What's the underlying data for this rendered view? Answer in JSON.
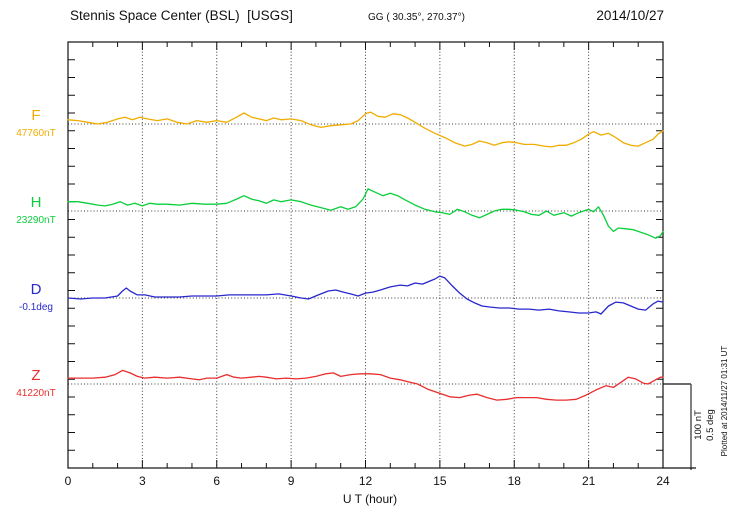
{
  "header": {
    "title": "Stennis Space Center (BSL)  [USGS]",
    "coordinates": "GG ( 30.35°, 270.37°)",
    "date": "2014/10/27"
  },
  "x_axis": {
    "label": "U T (hour)",
    "tick_labels": [
      0,
      3,
      6,
      9,
      12,
      15,
      18,
      21,
      24
    ],
    "range": [
      0,
      24
    ],
    "minor_tick_every_hours": 1,
    "major_tick_every_hours": 3,
    "grid": "dotted vertical lines at each 3-hour major tick"
  },
  "scale_bar": {
    "label_nT": "100 nT",
    "label_deg": "0.5 deg",
    "note": "vertical bar at right edge spanning 100 nT / 0.5 deg"
  },
  "plotted_at": "Plotted at 2014/11/27 01:31 UT",
  "chart_data": {
    "type": "line",
    "title": "Magnetogram, Stennis Space Center (BSL), USGS, 2014/10/27",
    "xlabel": "U T (hour)",
    "xlim": [
      0,
      24
    ],
    "grid": "dotted",
    "x_units": "hours UT",
    "series": [
      {
        "name": "F",
        "reference_label": "47760nT",
        "units": "nT",
        "color": "#F0AD00",
        "baseline_note": "dotted line = 47760 nT; offsets in nT relative to baseline",
        "points": [
          [
            0,
            5
          ],
          [
            0.4,
            4
          ],
          [
            0.8,
            2
          ],
          [
            1.2,
            0
          ],
          [
            1.6,
            2
          ],
          [
            2,
            6
          ],
          [
            2.3,
            8
          ],
          [
            2.6,
            5
          ],
          [
            2.9,
            8
          ],
          [
            3.2,
            6
          ],
          [
            3.6,
            4
          ],
          [
            4,
            6
          ],
          [
            4.4,
            2
          ],
          [
            4.8,
            0
          ],
          [
            5.2,
            4
          ],
          [
            5.6,
            2
          ],
          [
            6,
            4
          ],
          [
            6.4,
            2
          ],
          [
            6.8,
            8
          ],
          [
            7.1,
            13
          ],
          [
            7.4,
            8
          ],
          [
            7.7,
            6
          ],
          [
            8,
            4
          ],
          [
            8.3,
            7
          ],
          [
            8.6,
            5
          ],
          [
            9,
            6
          ],
          [
            9.4,
            4
          ],
          [
            9.8,
            -1
          ],
          [
            10.2,
            -4
          ],
          [
            10.6,
            -2
          ],
          [
            11,
            -1
          ],
          [
            11.4,
            0
          ],
          [
            11.7,
            4
          ],
          [
            12,
            12
          ],
          [
            12.2,
            14
          ],
          [
            12.5,
            9
          ],
          [
            12.8,
            8
          ],
          [
            13.1,
            12
          ],
          [
            13.4,
            11
          ],
          [
            13.7,
            7
          ],
          [
            14,
            2
          ],
          [
            14.4,
            -5
          ],
          [
            14.8,
            -11
          ],
          [
            15.2,
            -16
          ],
          [
            15.6,
            -22
          ],
          [
            16,
            -26
          ],
          [
            16.3,
            -24
          ],
          [
            16.6,
            -20
          ],
          [
            16.9,
            -22
          ],
          [
            17.2,
            -25
          ],
          [
            17.5,
            -22
          ],
          [
            17.8,
            -21
          ],
          [
            18.1,
            -22
          ],
          [
            18.4,
            -24
          ],
          [
            18.8,
            -24
          ],
          [
            19.2,
            -26
          ],
          [
            19.5,
            -27
          ],
          [
            19.8,
            -25
          ],
          [
            20.1,
            -25
          ],
          [
            20.4,
            -22
          ],
          [
            20.7,
            -18
          ],
          [
            21,
            -12
          ],
          [
            21.2,
            -9
          ],
          [
            21.5,
            -13
          ],
          [
            21.8,
            -11
          ],
          [
            22.1,
            -16
          ],
          [
            22.4,
            -22
          ],
          [
            22.7,
            -25
          ],
          [
            23,
            -26
          ],
          [
            23.3,
            -22
          ],
          [
            23.6,
            -18
          ],
          [
            23.8,
            -12
          ],
          [
            24,
            -8
          ]
        ]
      },
      {
        "name": "H",
        "reference_label": "23290nT",
        "units": "nT",
        "color": "#0BCE3C",
        "baseline_note": "dotted line = 23290 nT; offsets in nT relative to baseline",
        "points": [
          [
            0,
            11
          ],
          [
            0.4,
            11
          ],
          [
            0.8,
            9
          ],
          [
            1.2,
            7
          ],
          [
            1.5,
            6
          ],
          [
            1.8,
            8
          ],
          [
            2.1,
            11
          ],
          [
            2.4,
            7
          ],
          [
            2.7,
            9
          ],
          [
            3,
            6
          ],
          [
            3.3,
            9
          ],
          [
            3.6,
            8
          ],
          [
            4,
            8
          ],
          [
            4.5,
            7
          ],
          [
            5,
            9
          ],
          [
            5.5,
            8
          ],
          [
            6,
            8
          ],
          [
            6.4,
            9
          ],
          [
            6.8,
            14
          ],
          [
            7.1,
            18
          ],
          [
            7.4,
            14
          ],
          [
            7.7,
            12
          ],
          [
            8,
            9
          ],
          [
            8.3,
            13
          ],
          [
            8.6,
            11
          ],
          [
            9,
            13
          ],
          [
            9.4,
            11
          ],
          [
            9.8,
            7
          ],
          [
            10.2,
            4
          ],
          [
            10.6,
            1
          ],
          [
            11,
            5
          ],
          [
            11.3,
            2
          ],
          [
            11.6,
            5
          ],
          [
            11.9,
            14
          ],
          [
            12.1,
            26
          ],
          [
            12.4,
            22
          ],
          [
            12.7,
            18
          ],
          [
            13,
            21
          ],
          [
            13.3,
            18
          ],
          [
            13.6,
            13
          ],
          [
            14,
            7
          ],
          [
            14.4,
            2
          ],
          [
            14.8,
            -1
          ],
          [
            15.1,
            -2
          ],
          [
            15.4,
            -4
          ],
          [
            15.7,
            2
          ],
          [
            16,
            -1
          ],
          [
            16.3,
            -5
          ],
          [
            16.6,
            -8
          ],
          [
            16.9,
            -4
          ],
          [
            17.2,
            0
          ],
          [
            17.5,
            2
          ],
          [
            17.8,
            2
          ],
          [
            18.1,
            1
          ],
          [
            18.4,
            -1
          ],
          [
            18.7,
            -4
          ],
          [
            19,
            -5
          ],
          [
            19.3,
            0
          ],
          [
            19.6,
            -5
          ],
          [
            20,
            -2
          ],
          [
            20.3,
            -6
          ],
          [
            20.6,
            -2
          ],
          [
            21,
            2
          ],
          [
            21.2,
            -1
          ],
          [
            21.4,
            5
          ],
          [
            21.6,
            -5
          ],
          [
            21.8,
            -18
          ],
          [
            22,
            -24
          ],
          [
            22.2,
            -20
          ],
          [
            22.5,
            -21
          ],
          [
            22.8,
            -22
          ],
          [
            23.1,
            -25
          ],
          [
            23.4,
            -28
          ],
          [
            23.7,
            -32
          ],
          [
            23.9,
            -29
          ],
          [
            24,
            -24
          ]
        ]
      },
      {
        "name": "D",
        "reference_label": "-0.1deg",
        "units": "deg",
        "color": "#2828CC",
        "baseline_note": "dotted line = -0.1 deg; offsets in degrees relative to baseline",
        "points": [
          [
            0,
            0
          ],
          [
            0.5,
            -0.006
          ],
          [
            1,
            0
          ],
          [
            1.5,
            0
          ],
          [
            2,
            0.012
          ],
          [
            2.2,
            0.041
          ],
          [
            2.35,
            0.059
          ],
          [
            2.5,
            0.041
          ],
          [
            2.8,
            0.018
          ],
          [
            3.1,
            0.018
          ],
          [
            3.5,
            0.006
          ],
          [
            4,
            0.006
          ],
          [
            4.5,
            0.006
          ],
          [
            5,
            0.012
          ],
          [
            5.5,
            0.012
          ],
          [
            6,
            0.012
          ],
          [
            6.5,
            0.018
          ],
          [
            7,
            0.018
          ],
          [
            7.5,
            0.018
          ],
          [
            8,
            0.018
          ],
          [
            8.5,
            0.024
          ],
          [
            9,
            0.012
          ],
          [
            9.4,
            0
          ],
          [
            9.7,
            -0.006
          ],
          [
            10.1,
            0.018
          ],
          [
            10.5,
            0.041
          ],
          [
            10.8,
            0.047
          ],
          [
            11.1,
            0.035
          ],
          [
            11.4,
            0.024
          ],
          [
            11.7,
            0.012
          ],
          [
            12,
            0.029
          ],
          [
            12.3,
            0.035
          ],
          [
            12.6,
            0.047
          ],
          [
            13,
            0.065
          ],
          [
            13.4,
            0.076
          ],
          [
            13.7,
            0.071
          ],
          [
            14,
            0.088
          ],
          [
            14.3,
            0.082
          ],
          [
            14.6,
            0.1
          ],
          [
            14.8,
            0.112
          ],
          [
            15,
            0.129
          ],
          [
            15.2,
            0.118
          ],
          [
            15.5,
            0.071
          ],
          [
            15.8,
            0.029
          ],
          [
            16.1,
            -0.006
          ],
          [
            16.4,
            -0.029
          ],
          [
            16.7,
            -0.047
          ],
          [
            17,
            -0.053
          ],
          [
            17.4,
            -0.059
          ],
          [
            17.8,
            -0.059
          ],
          [
            18.2,
            -0.065
          ],
          [
            18.6,
            -0.065
          ],
          [
            19,
            -0.071
          ],
          [
            19.4,
            -0.065
          ],
          [
            19.8,
            -0.076
          ],
          [
            20.2,
            -0.082
          ],
          [
            20.6,
            -0.088
          ],
          [
            21,
            -0.088
          ],
          [
            21.3,
            -0.082
          ],
          [
            21.5,
            -0.094
          ],
          [
            21.8,
            -0.047
          ],
          [
            22.1,
            -0.024
          ],
          [
            22.4,
            -0.029
          ],
          [
            22.7,
            -0.047
          ],
          [
            23,
            -0.065
          ],
          [
            23.3,
            -0.071
          ],
          [
            23.6,
            -0.035
          ],
          [
            23.8,
            -0.018
          ],
          [
            24,
            -0.024
          ]
        ]
      },
      {
        "name": "Z",
        "reference_label": "41220nT",
        "units": "nT",
        "color": "#E82E2E",
        "baseline_note": "dotted line = 41220 nT; offsets in nT relative to baseline",
        "points": [
          [
            0,
            7
          ],
          [
            0.5,
            7
          ],
          [
            1,
            7
          ],
          [
            1.5,
            8
          ],
          [
            1.9,
            11
          ],
          [
            2.2,
            16
          ],
          [
            2.5,
            13
          ],
          [
            2.8,
            9
          ],
          [
            3.1,
            7
          ],
          [
            3.5,
            8
          ],
          [
            4,
            7
          ],
          [
            4.5,
            8
          ],
          [
            5,
            6
          ],
          [
            5.3,
            5
          ],
          [
            5.6,
            7
          ],
          [
            6,
            7
          ],
          [
            6.4,
            11
          ],
          [
            6.7,
            8
          ],
          [
            7,
            7
          ],
          [
            7.4,
            8
          ],
          [
            7.7,
            9
          ],
          [
            8,
            8
          ],
          [
            8.4,
            6
          ],
          [
            8.8,
            7
          ],
          [
            9.2,
            6
          ],
          [
            9.6,
            7
          ],
          [
            10,
            9
          ],
          [
            10.4,
            12
          ],
          [
            10.7,
            13
          ],
          [
            11,
            9
          ],
          [
            11.4,
            11
          ],
          [
            11.8,
            12
          ],
          [
            12.2,
            12
          ],
          [
            12.6,
            11
          ],
          [
            13,
            7
          ],
          [
            13.4,
            5
          ],
          [
            13.8,
            2
          ],
          [
            14.1,
            0
          ],
          [
            14.5,
            -6
          ],
          [
            15,
            -11
          ],
          [
            15.4,
            -15
          ],
          [
            15.8,
            -16
          ],
          [
            16.2,
            -13
          ],
          [
            16.5,
            -12
          ],
          [
            16.9,
            -16
          ],
          [
            17.3,
            -19
          ],
          [
            17.7,
            -18
          ],
          [
            18.1,
            -16
          ],
          [
            18.5,
            -16
          ],
          [
            18.9,
            -16
          ],
          [
            19.3,
            -18
          ],
          [
            19.7,
            -19
          ],
          [
            20.1,
            -19
          ],
          [
            20.5,
            -18
          ],
          [
            20.9,
            -13
          ],
          [
            21.3,
            -7
          ],
          [
            21.7,
            -2
          ],
          [
            22,
            -4
          ],
          [
            22.3,
            2
          ],
          [
            22.6,
            8
          ],
          [
            22.9,
            6
          ],
          [
            23.2,
            1
          ],
          [
            23.4,
            0
          ],
          [
            23.7,
            5
          ],
          [
            23.9,
            8
          ],
          [
            24,
            8
          ]
        ]
      }
    ],
    "scale": {
      "nT_per_scalebar": 100,
      "deg_per_scalebar": 0.5
    }
  }
}
